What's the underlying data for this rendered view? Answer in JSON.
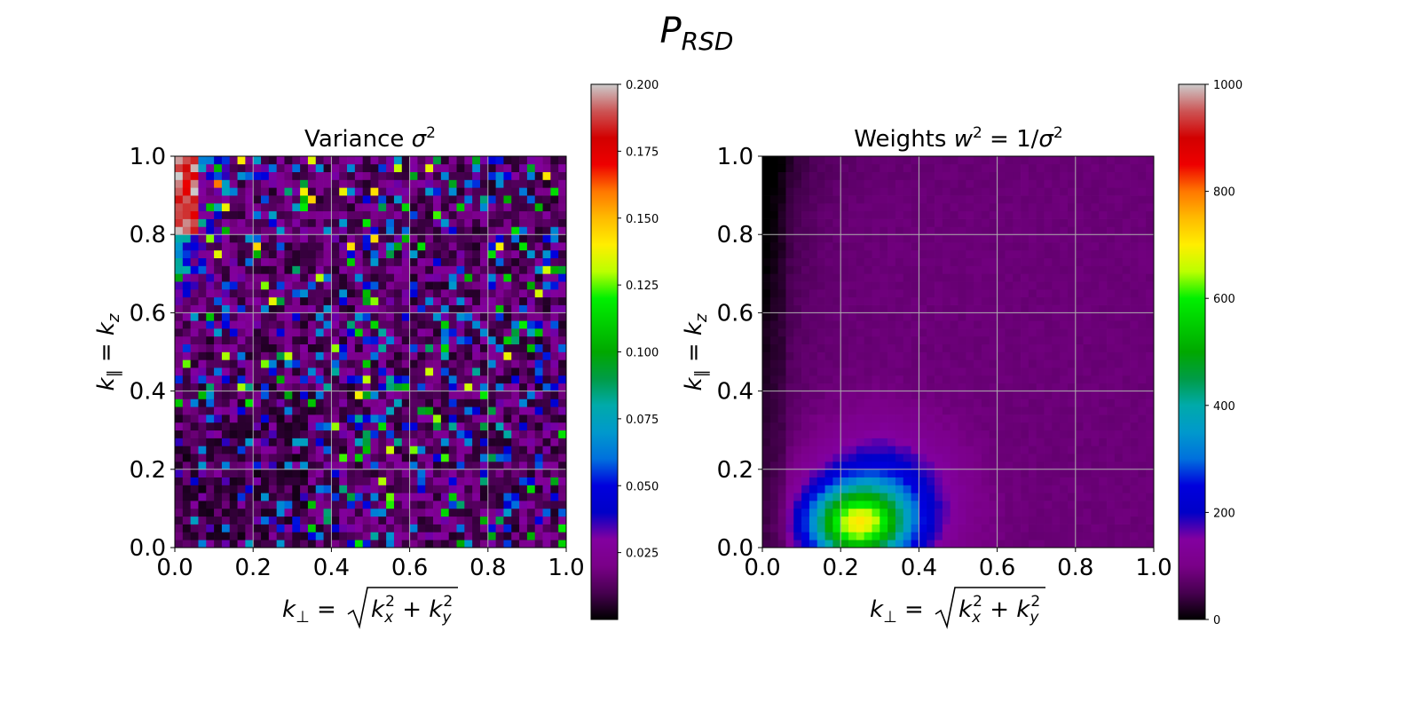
{
  "figure": {
    "suptitle_main": "P",
    "suptitle_sub": "RSD"
  },
  "chart_data": [
    {
      "type": "heatmap",
      "title": "Variance σ²",
      "title_parts": [
        "Variance ",
        "σ",
        "2"
      ],
      "xlabel": "k⊥ = √(kx² + ky²)",
      "ylabel": "k∥ = kz",
      "xlim": [
        0.0,
        1.0
      ],
      "ylim": [
        0.0,
        1.0
      ],
      "xticks": [
        "0.0",
        "0.2",
        "0.4",
        "0.6",
        "0.8",
        "1.0"
      ],
      "yticks": [
        "0.0",
        "0.2",
        "0.4",
        "0.6",
        "0.8",
        "1.0"
      ],
      "grid": true,
      "grid_bins": 50,
      "colormap": "nipy_spectral",
      "colorbar": {
        "range": [
          0.0,
          0.2
        ],
        "ticks": [
          "0.025",
          "0.050",
          "0.075",
          "0.100",
          "0.125",
          "0.150",
          "0.175",
          "0.200"
        ]
      },
      "field_description": "noisy per-pixel variance; mostly 0–0.03 (black/purple); high values up to ~0.2 (white/red/yellow) concentrated at small k⊥ and large k∥"
    },
    {
      "type": "heatmap",
      "title": "Weights w² = 1/σ²",
      "title_parts": [
        "Weights ",
        "w",
        "2",
        " = 1/",
        "σ",
        "2"
      ],
      "xlabel": "k⊥ = √(kx² + ky²)",
      "ylabel": "k∥ = kz",
      "xlim": [
        0.0,
        1.0
      ],
      "ylim": [
        0.0,
        1.0
      ],
      "xticks": [
        "0.0",
        "0.2",
        "0.4",
        "0.6",
        "0.8",
        "1.0"
      ],
      "yticks": [
        "0.0",
        "0.2",
        "0.4",
        "0.6",
        "0.8",
        "1.0"
      ],
      "grid": true,
      "grid_bins": 50,
      "colormap": "nipy_spectral",
      "colorbar": {
        "range": [
          0,
          1000
        ],
        "ticks": [
          "0",
          "200",
          "400",
          "600",
          "800",
          "1000"
        ]
      },
      "field_description": "smooth weight field; ~80–100 (purple) over most of the plane; near 0 (black) at small k⊥ and large k∥; peak ~500–600 (green) near k⊥≈0.2, k∥≈0.05"
    }
  ]
}
